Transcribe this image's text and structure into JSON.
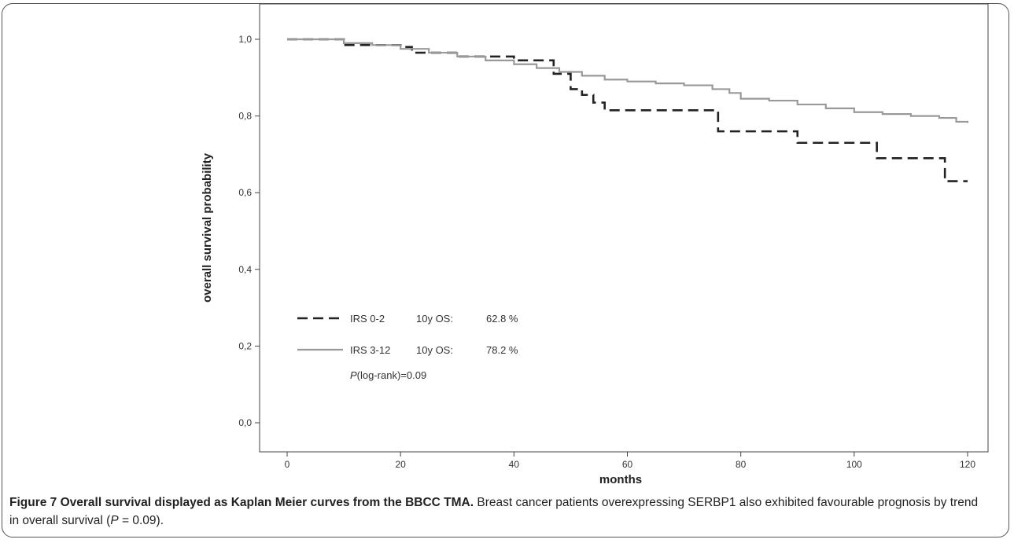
{
  "chart_data": {
    "type": "line",
    "xlabel": "months",
    "ylabel": "overall survival probability",
    "xlim": [
      0,
      120
    ],
    "ylim": [
      0.0,
      1.0
    ],
    "xticks": [
      "0",
      "20",
      "40",
      "60",
      "80",
      "100",
      "120"
    ],
    "yticks": [
      "0,0",
      "0,2",
      "0,4",
      "0,6",
      "0,8",
      "1,0"
    ],
    "grid": false,
    "legend_position": "bottom-left",
    "series": [
      {
        "name": "IRS 0-2",
        "os_label": "10y OS:",
        "os_value": "62.8 %",
        "style": "dashed",
        "color": "#222222",
        "x": [
          0,
          8,
          10,
          20,
          22,
          30,
          40,
          46,
          47,
          50,
          52,
          54,
          56,
          62,
          74,
          76,
          84,
          90,
          103,
          104,
          115,
          116,
          120
        ],
        "y": [
          1.0,
          1.0,
          0.985,
          0.98,
          0.965,
          0.955,
          0.945,
          0.945,
          0.91,
          0.87,
          0.855,
          0.835,
          0.815,
          0.815,
          0.815,
          0.76,
          0.76,
          0.73,
          0.73,
          0.69,
          0.69,
          0.63,
          0.63
        ]
      },
      {
        "name": "IRS 3-12",
        "os_label": "10y OS:",
        "os_value": "78.2 %",
        "style": "solid",
        "color": "#999999",
        "x": [
          0,
          5,
          10,
          15,
          20,
          25,
          30,
          35,
          40,
          44,
          48,
          52,
          56,
          60,
          65,
          70,
          75,
          78,
          80,
          85,
          90,
          95,
          100,
          105,
          110,
          115,
          118,
          120
        ],
        "y": [
          1.0,
          1.0,
          0.99,
          0.985,
          0.975,
          0.965,
          0.955,
          0.945,
          0.935,
          0.925,
          0.915,
          0.905,
          0.895,
          0.89,
          0.885,
          0.88,
          0.87,
          0.86,
          0.845,
          0.84,
          0.83,
          0.82,
          0.81,
          0.805,
          0.8,
          0.795,
          0.785,
          0.782
        ]
      }
    ],
    "annotation": {
      "italic": "P",
      "rest": "(log-rank)=0.09"
    }
  },
  "caption": {
    "bold": "Figure 7 Overall survival displayed as Kaplan Meier curves from the BBCC TMA.",
    "text1": " Breast cancer patients overexpressing SERBP1 also exhibited favourable prognosis by trend in overall survival (",
    "p": "P",
    "text2": " = 0.09)."
  }
}
